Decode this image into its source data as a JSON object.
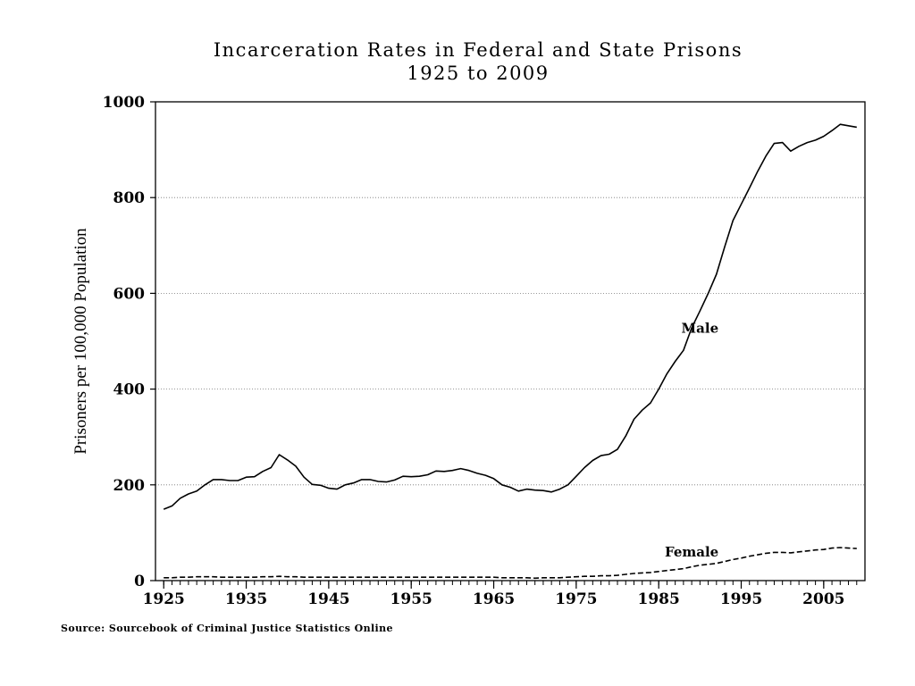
{
  "chart_data": {
    "type": "line",
    "title": "Incarceration Rates in Federal and State Prisons",
    "subtitle": "1925 to 2009",
    "xlabel": "",
    "ylabel": "Prisoners per 100,000 Population",
    "xlim": [
      1924,
      2010
    ],
    "ylim": [
      0,
      1000
    ],
    "x_ticks": [
      1925,
      1935,
      1945,
      1955,
      1965,
      1975,
      1985,
      1995,
      2005
    ],
    "y_ticks": [
      0,
      200,
      400,
      600,
      800,
      1000
    ],
    "grid": "horizontal-dotted",
    "x": [
      1925,
      1926,
      1927,
      1928,
      1929,
      1930,
      1931,
      1932,
      1933,
      1934,
      1935,
      1936,
      1937,
      1938,
      1939,
      1940,
      1941,
      1942,
      1943,
      1944,
      1945,
      1946,
      1947,
      1948,
      1949,
      1950,
      1951,
      1952,
      1953,
      1954,
      1955,
      1956,
      1957,
      1958,
      1959,
      1960,
      1961,
      1962,
      1963,
      1964,
      1965,
      1966,
      1967,
      1968,
      1969,
      1970,
      1971,
      1972,
      1973,
      1974,
      1975,
      1976,
      1977,
      1978,
      1979,
      1980,
      1981,
      1982,
      1983,
      1984,
      1985,
      1986,
      1987,
      1988,
      1989,
      1990,
      1991,
      1992,
      1993,
      1994,
      1995,
      1996,
      1997,
      1998,
      1999,
      2000,
      2001,
      2002,
      2003,
      2004,
      2005,
      2006,
      2007,
      2008,
      2009
    ],
    "series": [
      {
        "name": "Male",
        "style": "solid",
        "values": [
          149,
          156,
          172,
          181,
          187,
          200,
          211,
          211,
          209,
          209,
          216,
          217,
          228,
          236,
          263,
          252,
          239,
          216,
          201,
          199,
          193,
          191,
          200,
          204,
          211,
          211,
          207,
          206,
          210,
          218,
          217,
          218,
          221,
          229,
          228,
          230,
          234,
          230,
          224,
          220,
          213,
          200,
          195,
          187,
          191,
          189,
          188,
          185,
          191,
          200,
          218,
          236,
          251,
          261,
          264,
          274,
          302,
          337,
          356,
          371,
          400,
          432,
          458,
          481,
          528,
          563,
          600,
          640,
          697,
          752,
          786,
          820,
          855,
          887,
          913,
          915,
          897,
          907,
          915,
          920,
          928,
          940,
          953,
          950,
          947
        ]
      },
      {
        "name": "Female",
        "style": "dashed",
        "values": [
          6,
          6,
          7,
          7,
          8,
          8,
          8,
          7,
          7,
          7,
          7,
          7,
          8,
          8,
          9,
          8,
          8,
          7,
          7,
          7,
          7,
          7,
          7,
          7,
          7,
          7,
          7,
          7,
          7,
          7,
          7,
          7,
          7,
          7,
          7,
          7,
          7,
          7,
          7,
          7,
          7,
          6,
          6,
          6,
          6,
          5,
          6,
          6,
          6,
          7,
          8,
          9,
          9,
          10,
          10,
          11,
          13,
          15,
          16,
          17,
          19,
          21,
          23,
          25,
          29,
          32,
          34,
          36,
          40,
          44,
          47,
          51,
          54,
          57,
          59,
          59,
          58,
          60,
          62,
          64,
          65,
          68,
          69,
          68,
          67
        ]
      }
    ],
    "annotations": [
      {
        "text": "Male",
        "x": 1990,
        "y": 518
      },
      {
        "text": "Female",
        "x": 1989,
        "y": 50
      }
    ]
  },
  "source": "Source: Sourcebook of Criminal Justice Statistics Online"
}
